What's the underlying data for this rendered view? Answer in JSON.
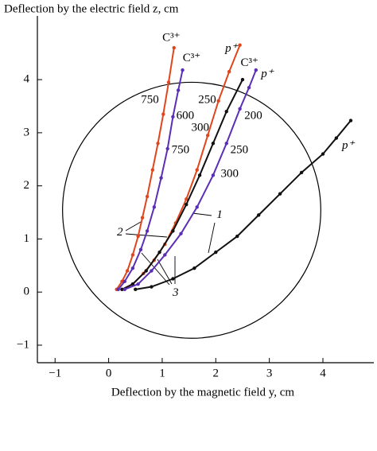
{
  "chart_data": {
    "type": "line",
    "xlabel": "Deflection by the magnetic field y, cm",
    "ylabel": "Deflection by the electric field z, cm",
    "xlim": [
      -1.33,
      4.95
    ],
    "ylim": [
      -1.33,
      5.2
    ],
    "xticks": [
      {
        "value": -1,
        "label": "−1"
      },
      0,
      1,
      2,
      3,
      4
    ],
    "yticks": [
      {
        "value": -1,
        "label": "−1"
      },
      0,
      1,
      2,
      3,
      4
    ],
    "circle": {
      "center": [
        1.55,
        1.54
      ],
      "radius": 2.41,
      "color": "#000000"
    },
    "series": [
      {
        "name": "C³⁺",
        "color": "#e0461e",
        "label_pos": [
          1.17,
          4.78
        ],
        "x": [
          0.15,
          0.25,
          0.35,
          0.45,
          0.55,
          0.63,
          0.72,
          0.82,
          0.92,
          1.02,
          1.12,
          1.22
        ],
        "values": [
          0.05,
          0.2,
          0.4,
          0.7,
          1.05,
          1.4,
          1.8,
          2.3,
          2.8,
          3.35,
          3.95,
          4.6
        ]
      },
      {
        "name": "C³⁺",
        "color": "#5b2fb5",
        "label_pos": [
          1.55,
          4.4
        ],
        "x": [
          0.18,
          0.3,
          0.45,
          0.6,
          0.72,
          0.85,
          0.98,
          1.1,
          1.2,
          1.3,
          1.38
        ],
        "values": [
          0.05,
          0.2,
          0.45,
          0.8,
          1.15,
          1.6,
          2.15,
          2.7,
          3.3,
          3.8,
          4.18
        ]
      },
      {
        "name": "p⁺",
        "color": "#e0461e",
        "label_pos": [
          2.29,
          4.58
        ],
        "x": [
          0.25,
          0.45,
          0.65,
          0.85,
          1.05,
          1.25,
          1.45,
          1.65,
          1.85,
          2.05,
          2.25,
          2.45
        ],
        "values": [
          0.05,
          0.15,
          0.35,
          0.6,
          0.9,
          1.3,
          1.75,
          2.3,
          2.95,
          3.6,
          4.15,
          4.65
        ]
      },
      {
        "name": "C³⁺",
        "color": "#111111",
        "label_pos": [
          2.63,
          4.31
        ],
        "x": [
          0.25,
          0.45,
          0.7,
          0.95,
          1.2,
          1.45,
          1.7,
          1.95,
          2.2,
          2.5
        ],
        "values": [
          0.05,
          0.15,
          0.4,
          0.75,
          1.15,
          1.65,
          2.2,
          2.8,
          3.4,
          4.0
        ]
      },
      {
        "name": "p⁺",
        "color": "#5b2fb5",
        "label_pos": [
          2.96,
          4.1
        ],
        "x": [
          0.3,
          0.55,
          0.8,
          1.05,
          1.35,
          1.65,
          1.95,
          2.2,
          2.45,
          2.62,
          2.75
        ],
        "values": [
          0.05,
          0.15,
          0.4,
          0.7,
          1.1,
          1.6,
          2.2,
          2.8,
          3.45,
          3.85,
          4.18
        ]
      },
      {
        "name": "p⁺",
        "color": "#111111",
        "label_pos": [
          4.47,
          2.75
        ],
        "x": [
          0.5,
          0.8,
          1.2,
          1.6,
          2.0,
          2.4,
          2.8,
          3.2,
          3.6,
          4.0,
          4.25,
          4.52
        ],
        "values": [
          0.05,
          0.1,
          0.25,
          0.45,
          0.75,
          1.05,
          1.45,
          1.85,
          2.25,
          2.6,
          2.9,
          3.23
        ]
      }
    ],
    "annotations": [
      {
        "text": "750",
        "x": 0.77,
        "y": 3.61
      },
      {
        "text": "600",
        "x": 1.43,
        "y": 3.31
      },
      {
        "text": "750",
        "x": 1.34,
        "y": 2.67
      },
      {
        "text": "250",
        "x": 1.84,
        "y": 3.61
      },
      {
        "text": "300",
        "x": 1.71,
        "y": 3.09
      },
      {
        "text": "200",
        "x": 2.7,
        "y": 3.31
      },
      {
        "text": "250",
        "x": 2.44,
        "y": 2.67
      },
      {
        "text": "300",
        "x": 2.26,
        "y": 2.22
      },
      {
        "text": "1",
        "x": 2.07,
        "y": 1.45
      },
      {
        "text": "2",
        "x": 0.21,
        "y": 1.12
      },
      {
        "text": "3",
        "x": 1.25,
        "y": -0.02
      }
    ]
  }
}
